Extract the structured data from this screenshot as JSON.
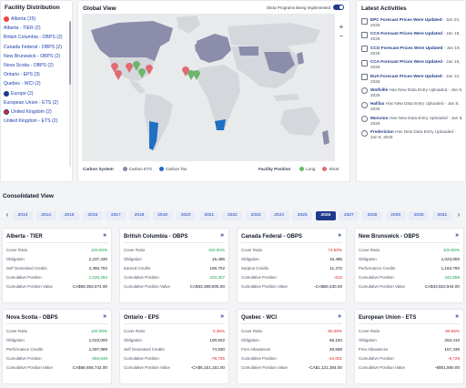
{
  "facility": {
    "title": "Facility Distribution",
    "items": [
      {
        "label": "Alberta (15)",
        "flag": "ca"
      },
      {
        "label": "Alberta - TIER (2)",
        "flag": ""
      },
      {
        "label": "British Columbia - OBPS (2)",
        "flag": ""
      },
      {
        "label": "Canada Federal - OBPS (2)",
        "flag": ""
      },
      {
        "label": "New Brunswick - OBPS (2)",
        "flag": ""
      },
      {
        "label": "Nova Scotia - OBPS (2)",
        "flag": ""
      },
      {
        "label": "Ontario - EPS (3)",
        "flag": ""
      },
      {
        "label": "Quebec - WCI (2)",
        "flag": ""
      },
      {
        "label": "Europe (2)",
        "flag": "eu"
      },
      {
        "label": "European Union - ETS (2)",
        "flag": ""
      },
      {
        "label": "United Kingdom (2)",
        "flag": "uk"
      },
      {
        "label": "United Kingdom - ETS (2)",
        "flag": ""
      }
    ]
  },
  "global": {
    "title": "Global View",
    "toggle_label": "Show Programs Being Implemented",
    "toggle_on": true,
    "zoom_in": "+",
    "zoom_out": "−",
    "carbon_system_label": "Carbon System",
    "carbon_ets": "Carbon ETS",
    "carbon_tax": "Carbon Tax",
    "facility_position_label": "Facility Position",
    "long": "Long",
    "short": "Short",
    "colors": {
      "ets": "#8c8cab",
      "tax": "#1f6fc4",
      "land": "#d5d7dc",
      "long": "#6db56a",
      "short": "#e06a74"
    }
  },
  "activities": {
    "title": "Latest Activities",
    "items": [
      {
        "icon": "doc",
        "name": "EPC Forecast Prices Were Updated",
        "date": "- Jan 23, 2026"
      },
      {
        "icon": "doc",
        "name": "CCA Forecast Prices Were Updated",
        "date": "- Jan 19, 2026"
      },
      {
        "icon": "doc",
        "name": "CCO Forecast Prices Were Updated",
        "date": "- Jan 19, 2026"
      },
      {
        "icon": "doc",
        "name": "CCA Forecast Prices Were Updated",
        "date": "- Jan 15, 2026"
      },
      {
        "icon": "doc",
        "name": "EUA Forecast Prices Were Updated",
        "date": "- Jan 13, 2026"
      },
      {
        "icon": "clock",
        "name": "Wolfville",
        "date": "Has New Data Entry Uploaded - Jan 8, 2026"
      },
      {
        "icon": "clock",
        "name": "Halifax",
        "date": "Has New Data Entry Uploaded - Jan 8, 2026"
      },
      {
        "icon": "clock",
        "name": "Moncton",
        "date": "Has New Data Entry Uploaded - Jan 8, 2026"
      },
      {
        "icon": "clock",
        "name": "Fredericton",
        "date": "Has New Data Entry Uploaded - Jan 8, 2026"
      }
    ]
  },
  "consolidated": {
    "title": "Consolidated View",
    "years": [
      "2013",
      "2014",
      "2015",
      "2016",
      "2017",
      "2018",
      "2019",
      "2020",
      "2021",
      "2022",
      "2023",
      "2024",
      "2025",
      "2026",
      "2027",
      "2028",
      "2029",
      "2030",
      "2031"
    ],
    "selected_year": "2026",
    "prev": "‹",
    "next": "›",
    "cards": [
      {
        "title": "Alberta - TIER",
        "rows": [
          {
            "label": "Cover Ratio",
            "value": "100.00%",
            "tone": "green"
          },
          {
            "label": "Obligation",
            "value": "2,237,430",
            "tone": ""
          },
          {
            "label": "Self Generated Credits",
            "value": "2,455,792",
            "tone": ""
          },
          {
            "label": "Cumulative Position",
            "value": "1,025,282",
            "tone": "green"
          },
          {
            "label": "Cumulative Position Value",
            "value": "CA$69,353,074.00",
            "tone": ""
          }
        ]
      },
      {
        "title": "British Columbia - OBPS",
        "rows": [
          {
            "label": "Cover Ratio",
            "value": "100.00%",
            "tone": "green"
          },
          {
            "label": "Obligation",
            "value": "15,485",
            "tone": ""
          },
          {
            "label": "Earned Credits",
            "value": "169,702",
            "tone": ""
          },
          {
            "label": "Cumulative Position",
            "value": "423,307",
            "tone": "green"
          },
          {
            "label": "Cumulative Position Value",
            "value": "CA$33,398,605.00",
            "tone": ""
          }
        ]
      },
      {
        "title": "Canada Federal - OBPS",
        "rows": [
          {
            "label": "Cover Ratio",
            "value": "74.58%",
            "tone": "red"
          },
          {
            "label": "Obligation",
            "value": "15,485",
            "tone": ""
          },
          {
            "label": "Surplus Credits",
            "value": "11,472",
            "tone": ""
          },
          {
            "label": "Cumulative Position",
            "value": "-813",
            "tone": "red"
          },
          {
            "label": "Cumulative Position Value",
            "value": "-CA$69,430.00",
            "tone": ""
          }
        ]
      },
      {
        "title": "New Brunswick - OBPS",
        "rows": [
          {
            "label": "Cover Ratio",
            "value": "100.00%",
            "tone": "green"
          },
          {
            "label": "Obligation",
            "value": "1,023,000",
            "tone": ""
          },
          {
            "label": "Performance Credits",
            "value": "1,163,760",
            "tone": ""
          },
          {
            "label": "Cumulative Position",
            "value": "442,656",
            "tone": "green"
          },
          {
            "label": "Cumulative Position Value",
            "value": "CA$43,822,944.00",
            "tone": ""
          }
        ]
      },
      {
        "title": "Nova Scotia - OBPS",
        "rows": [
          {
            "label": "Cover Ratio",
            "value": "100.00%",
            "tone": "green"
          },
          {
            "label": "Obligation",
            "value": "1,023,000",
            "tone": ""
          },
          {
            "label": "Performance Credits",
            "value": "1,097,889",
            "tone": ""
          },
          {
            "label": "Cumulative Position",
            "value": "683,649",
            "tone": "green"
          },
          {
            "label": "Cumulative Position Value",
            "value": "CA$68,656,742.00",
            "tone": ""
          }
        ]
      },
      {
        "title": "Ontario - EPS",
        "rows": [
          {
            "label": "Cover Ratio",
            "value": "0.36%",
            "tone": "red"
          },
          {
            "label": "Obligation",
            "value": "100,602",
            "tone": ""
          },
          {
            "label": "Self Generated Credits",
            "value": "74,530",
            "tone": ""
          },
          {
            "label": "Cumulative Position",
            "value": "-78,725",
            "tone": "red"
          },
          {
            "label": "Cumulative Position Value",
            "value": "-CA$6,151,151.00",
            "tone": ""
          }
        ]
      },
      {
        "title": "Quebec - WCI",
        "rows": [
          {
            "label": "Cover Ratio",
            "value": "80.39%",
            "tone": "red"
          },
          {
            "label": "Obligation",
            "value": "66,163",
            "tone": ""
          },
          {
            "label": "Free Allowances",
            "value": "48,568",
            "tone": ""
          },
          {
            "label": "Cumulative Position",
            "value": "-42,001",
            "tone": "red"
          },
          {
            "label": "Cumulative Position Value",
            "value": "-CA$1,121,384.00",
            "tone": ""
          }
        ]
      },
      {
        "title": "European Union - ETS",
        "rows": [
          {
            "label": "Cover Ratio",
            "value": "96.56%",
            "tone": "red"
          },
          {
            "label": "Obligation",
            "value": "253,410",
            "tone": ""
          },
          {
            "label": "Free Allowances",
            "value": "157,436",
            "tone": ""
          },
          {
            "label": "Cumulative Position",
            "value": "-8,728",
            "tone": "red"
          },
          {
            "label": "Cumulative Position Value",
            "value": "-€851,560.00",
            "tone": ""
          }
        ]
      }
    ]
  }
}
